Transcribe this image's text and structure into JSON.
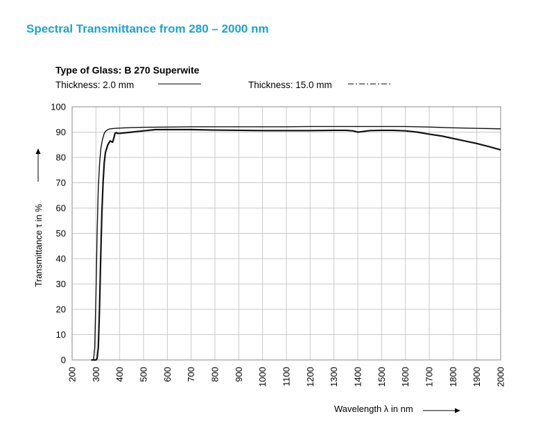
{
  "page_title": "Spectral Transmittance from 280 – 2000 nm",
  "chart_data": {
    "type": "line",
    "title": "Type of Glass: B 270  Superwite",
    "xlabel": "Wavelength λ in nm",
    "ylabel": "Transmittance τ in %",
    "xlim": [
      200,
      2000
    ],
    "ylim": [
      0,
      100
    ],
    "xticks": [
      200,
      300,
      400,
      500,
      600,
      700,
      800,
      900,
      1000,
      1100,
      1200,
      1300,
      1400,
      1500,
      1600,
      1700,
      1800,
      1900,
      2000
    ],
    "yticks": [
      0,
      10,
      20,
      30,
      40,
      50,
      60,
      70,
      80,
      90,
      100
    ],
    "grid": true,
    "legend_position": "top",
    "series": [
      {
        "name": "Thickness: 2.0 mm",
        "line_style": "solid",
        "x": [
          280,
          290,
          295,
          300,
          305,
          310,
          315,
          320,
          325,
          330,
          335,
          340,
          350,
          360,
          380,
          400,
          450,
          500,
          600,
          700,
          800,
          900,
          1000,
          1100,
          1200,
          1300,
          1400,
          1500,
          1600,
          1700,
          1800,
          1900,
          2000
        ],
        "y": [
          0,
          0,
          5,
          25,
          50,
          68,
          77,
          83,
          86,
          88,
          89.5,
          90.3,
          91,
          91.3,
          91.5,
          91.6,
          91.8,
          91.9,
          92.0,
          92.1,
          92.1,
          92.1,
          92.1,
          92.1,
          92.2,
          92.2,
          92.2,
          92.2,
          92.2,
          92.0,
          91.7,
          91.5,
          91.3
        ]
      },
      {
        "name": "Thickness: 15.0 mm",
        "line_style": "dash-dot",
        "x": [
          280,
          300,
          305,
          310,
          315,
          320,
          325,
          330,
          335,
          340,
          350,
          360,
          370,
          375,
          380,
          385,
          390,
          400,
          450,
          500,
          550,
          600,
          700,
          800,
          900,
          1000,
          1100,
          1200,
          1300,
          1350,
          1380,
          1400,
          1420,
          1450,
          1500,
          1550,
          1600,
          1650,
          1700,
          1750,
          1800,
          1850,
          1900,
          1950,
          2000
        ],
        "y": [
          0,
          0,
          0.5,
          5,
          20,
          40,
          58,
          70,
          78,
          82,
          85,
          86.5,
          86,
          87.5,
          89.5,
          89.8,
          89.5,
          89.5,
          90.0,
          90.5,
          91.0,
          91.0,
          91.0,
          90.8,
          90.7,
          90.6,
          90.6,
          90.6,
          90.7,
          90.7,
          90.5,
          90.0,
          90.2,
          90.6,
          90.7,
          90.7,
          90.5,
          90.0,
          89.2,
          88.5,
          87.5,
          86.5,
          85.5,
          84.3,
          83.0
        ]
      }
    ]
  }
}
